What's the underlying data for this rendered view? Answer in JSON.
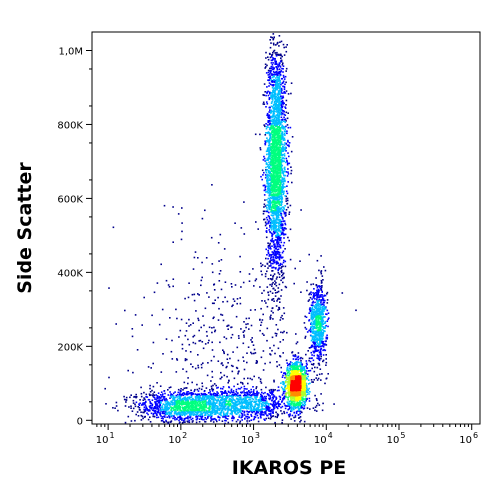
{
  "chart_data": {
    "type": "scatter",
    "subtype": "flow-cytometry density dot plot",
    "xlabel": "IKAROS PE",
    "ylabel": "Side Scatter",
    "x_scale": "log",
    "y_scale": "linear",
    "xlim": [
      6,
      1300000
    ],
    "ylim": [
      -10000,
      1050000
    ],
    "x_ticks": [
      {
        "value": 10,
        "base": "10",
        "exp": "1"
      },
      {
        "value": 100,
        "base": "10",
        "exp": "2"
      },
      {
        "value": 1000,
        "base": "10",
        "exp": "3"
      },
      {
        "value": 10000,
        "base": "10",
        "exp": "4"
      },
      {
        "value": 100000,
        "base": "10",
        "exp": "5"
      },
      {
        "value": 1000000,
        "base": "10",
        "exp": "6"
      }
    ],
    "y_ticks": [
      {
        "value": 0,
        "label": "0"
      },
      {
        "value": 200000,
        "label": "200K"
      },
      {
        "value": 400000,
        "label": "400K"
      },
      {
        "value": 600000,
        "label": "600K"
      },
      {
        "value": 800000,
        "label": "800K"
      },
      {
        "value": 1000000,
        "label": "1,0M"
      }
    ],
    "grid": false,
    "legend": "none",
    "colormap": [
      "#00008b",
      "#0000ff",
      "#00bfff",
      "#00ff7f",
      "#adff2f",
      "#ffff00",
      "#ff8c00",
      "#ff0000"
    ],
    "populations": [
      {
        "x_center": 2000,
        "x_spread_decades": 0.07,
        "y_center": 700000,
        "y_spread": 160000,
        "count": 2600
      },
      {
        "x_center": 3800,
        "x_spread_decades": 0.07,
        "y_center": 95000,
        "y_spread": 30000,
        "count": 1500
      },
      {
        "x_center": 7500,
        "x_spread_decades": 0.06,
        "y_center": 265000,
        "y_spread": 55000,
        "count": 700
      },
      {
        "x_center": 120,
        "x_spread_decades": 0.35,
        "y_center": 40000,
        "y_spread": 22000,
        "count": 1300
      },
      {
        "x_center": 800,
        "x_spread_decades": 0.3,
        "y_center": 45000,
        "y_spread": 22000,
        "count": 800
      },
      {
        "x_center": 500,
        "x_spread_decades": 0.6,
        "y_center": 200000,
        "y_spread": 170000,
        "count": 550
      }
    ]
  }
}
